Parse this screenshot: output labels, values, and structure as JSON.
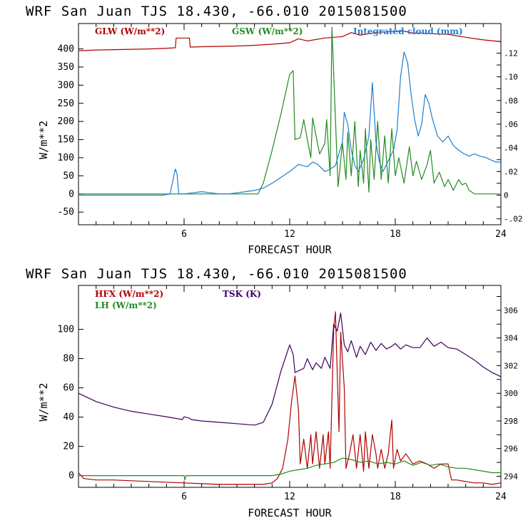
{
  "chart_data": [
    {
      "type": "line",
      "title": "WRF   San Juan TJS  18.430, -66.010  2015081500",
      "xlabel": "FORECAST HOUR",
      "ylabel": "W/m**2",
      "xlim": [
        0,
        24
      ],
      "ylim": [
        -85,
        470
      ],
      "y2lim": [
        -0.025,
        0.145
      ],
      "x_ticks": [
        6,
        12,
        18,
        24
      ],
      "y_ticks": [
        -50,
        0,
        50,
        100,
        150,
        200,
        250,
        300,
        350,
        400
      ],
      "y2_ticks": [
        -0.02,
        0,
        0.02,
        0.04,
        0.06,
        0.08,
        0.1,
        0.12
      ],
      "y2_tick_labels": [
        "-.02",
        "0",
        ".02",
        ".04",
        ".06",
        ".08",
        ".10",
        ".12"
      ],
      "series": [
        {
          "name": "GLW (W/m**2)",
          "color": "#b00000",
          "axis": "left",
          "x": [
            0,
            1,
            2,
            3,
            4,
            5,
            5.5,
            5.55,
            6.3,
            6.35,
            7,
            8,
            9,
            10,
            11,
            12,
            12.5,
            13,
            14,
            15,
            15.5,
            16,
            17,
            18,
            18.5,
            19,
            20,
            21,
            22,
            23,
            24
          ],
          "y": [
            395,
            397,
            398,
            399,
            400,
            402,
            403,
            430,
            430,
            405,
            406,
            407,
            408,
            410,
            413,
            417,
            428,
            422,
            430,
            434,
            445,
            438,
            446,
            448,
            449,
            444,
            442,
            440,
            432,
            425,
            420
          ]
        },
        {
          "name": "GSW (W/m**2)",
          "color": "#228b22",
          "axis": "left",
          "x": [
            0,
            10.2,
            10.5,
            11,
            11.5,
            12,
            12.2,
            12.3,
            12.6,
            12.8,
            13,
            13.2,
            13.3,
            13.7,
            14,
            14.1,
            14.3,
            14.4,
            14.7,
            14.75,
            15,
            15.2,
            15.3,
            15.5,
            15.7,
            15.9,
            16,
            16.2,
            16.3,
            16.5,
            16.6,
            16.8,
            17,
            17.2,
            17.4,
            17.6,
            17.8,
            18,
            18.2,
            18.5,
            18.8,
            19,
            19.2,
            19.5,
            19.8,
            20,
            20.2,
            20.5,
            20.8,
            21,
            21.3,
            21.6,
            21.8,
            22,
            22.2,
            22.5,
            24
          ],
          "y": [
            0,
            0,
            30,
            120,
            220,
            330,
            340,
            150,
            155,
            205,
            150,
            100,
            210,
            110,
            140,
            205,
            50,
            460,
            80,
            20,
            140,
            40,
            170,
            50,
            200,
            20,
            120,
            30,
            180,
            5,
            150,
            40,
            200,
            40,
            160,
            30,
            180,
            50,
            100,
            30,
            130,
            50,
            90,
            40,
            80,
            120,
            30,
            60,
            20,
            40,
            10,
            40,
            25,
            30,
            10,
            0,
            0
          ]
        },
        {
          "name": "Integrated cloud (mm)",
          "color": "#1f7fd0",
          "axis": "right",
          "x": [
            0,
            4.8,
            5.2,
            5.5,
            5.6,
            5.7,
            6,
            6.5,
            7,
            7.5,
            8,
            8.5,
            9,
            9.5,
            10,
            10.5,
            11,
            11.5,
            12,
            12.5,
            13,
            13.3,
            13.6,
            14,
            14.3,
            14.6,
            15,
            15.1,
            15.3,
            15.5,
            15.7,
            15.9,
            16.2,
            16.5,
            16.7,
            16.9,
            17.1,
            17.3,
            17.5,
            17.7,
            17.9,
            18.1,
            18.3,
            18.5,
            18.7,
            18.9,
            19.1,
            19.3,
            19.5,
            19.7,
            19.9,
            20.1,
            20.4,
            20.7,
            21,
            21.3,
            21.6,
            21.9,
            22.2,
            22.5,
            22.8,
            23.1,
            23.4,
            23.7,
            24
          ],
          "y": [
            0,
            0,
            0.001,
            0.022,
            0.018,
            0.001,
            0.001,
            0.002,
            0.003,
            0.002,
            0.001,
            0.001,
            0.002,
            0.003,
            0.004,
            0.006,
            0.01,
            0.015,
            0.02,
            0.026,
            0.024,
            0.028,
            0.026,
            0.02,
            0.022,
            0.025,
            0.045,
            0.07,
            0.06,
            0.038,
            0.025,
            0.02,
            0.03,
            0.05,
            0.095,
            0.045,
            0.028,
            0.02,
            0.026,
            0.032,
            0.038,
            0.055,
            0.1,
            0.121,
            0.112,
            0.085,
            0.064,
            0.05,
            0.06,
            0.085,
            0.078,
            0.065,
            0.05,
            0.045,
            0.05,
            0.042,
            0.038,
            0.035,
            0.033,
            0.035,
            0.033,
            0.032,
            0.03,
            0.028,
            0.028
          ]
        }
      ],
      "legend": [
        {
          "label": "GLW (W/m**2)",
          "color": "#b00000"
        },
        {
          "label": "GSW (W/m**2)",
          "color": "#228b22"
        },
        {
          "label": "Integrated cloud (mm)",
          "color": "#1f7fd0"
        }
      ]
    },
    {
      "type": "line",
      "title": "WRF   San Juan TJS  18.430, -66.010  2015081500",
      "xlabel": "FORECAST HOUR",
      "ylabel": "W/m**2",
      "xlim": [
        0,
        24
      ],
      "ylim": [
        -8,
        130
      ],
      "y2lim": [
        293.2,
        307.8
      ],
      "x_ticks": [
        6,
        12,
        18,
        24
      ],
      "y_ticks": [
        0,
        20,
        40,
        60,
        80,
        100
      ],
      "y2_ticks": [
        294,
        296,
        298,
        300,
        302,
        304,
        306
      ],
      "y2_tick_labels": [
        "294",
        "296",
        "298",
        "300",
        "302",
        "304",
        "306"
      ],
      "series": [
        {
          "name": "HFX (W/m**2)",
          "color": "#b00000",
          "axis": "left",
          "x": [
            0,
            0.3,
            1,
            2,
            3,
            4,
            5,
            6,
            7,
            8,
            9,
            10,
            10.5,
            11,
            11.3,
            11.6,
            11.9,
            12.1,
            12.3,
            12.5,
            12.6,
            12.8,
            13,
            13.2,
            13.3,
            13.5,
            13.7,
            13.9,
            14,
            14.2,
            14.3,
            14.5,
            14.6,
            14.8,
            14.9,
            15.1,
            15.2,
            15.4,
            15.6,
            15.8,
            16,
            16.2,
            16.3,
            16.5,
            16.7,
            16.9,
            17,
            17.2,
            17.4,
            17.6,
            17.8,
            17.9,
            18.1,
            18.3,
            18.6,
            19,
            19.4,
            19.8,
            20.2,
            20.6,
            21,
            21.2,
            21.5,
            22,
            22.5,
            23,
            23.5,
            24
          ],
          "y": [
            2,
            -2,
            -3,
            -3,
            -3.5,
            -4,
            -4.5,
            -5,
            -5.5,
            -6,
            -6,
            -6,
            -6,
            -5,
            -2,
            5,
            25,
            50,
            68,
            45,
            8,
            25,
            5,
            28,
            8,
            30,
            5,
            28,
            8,
            30,
            5,
            100,
            112,
            30,
            98,
            60,
            5,
            15,
            28,
            5,
            28,
            3,
            30,
            5,
            28,
            15,
            5,
            18,
            5,
            15,
            38,
            5,
            18,
            10,
            15,
            8,
            10,
            8,
            5,
            8,
            8,
            -3,
            -3,
            -4,
            -5,
            -5,
            -6,
            -5
          ]
        },
        {
          "name": "LH (W/m**2)",
          "color": "#228b22",
          "axis": "left",
          "x": [
            0,
            6,
            6.05,
            6.1,
            7,
            8,
            9,
            10,
            10.5,
            11,
            11.5,
            12,
            12.5,
            13,
            13.5,
            14,
            14.5,
            15,
            15.5,
            16,
            16.5,
            17,
            17.5,
            18,
            18.5,
            19,
            19.5,
            20,
            20.5,
            21,
            21.5,
            22,
            22.5,
            23,
            23.5,
            24
          ],
          "y": [
            0,
            0,
            -3,
            0,
            0,
            0,
            0,
            0,
            0,
            0,
            1,
            3,
            4,
            5,
            7,
            8,
            9,
            12,
            11,
            9,
            10,
            8,
            9,
            8,
            10,
            7,
            9,
            7,
            8,
            6,
            5,
            5,
            4,
            3,
            2,
            2
          ]
        },
        {
          "name": "TSK (K)",
          "color": "#3a0060",
          "axis": "right",
          "x": [
            0,
            1,
            2,
            3,
            4,
            5,
            5.9,
            6,
            6.3,
            6.4,
            7,
            8,
            9,
            10,
            10.5,
            11,
            11.5,
            12,
            12.2,
            12.3,
            12.8,
            13,
            13.3,
            13.5,
            13.8,
            14,
            14.3,
            14.5,
            14.7,
            14.9,
            15.1,
            15.3,
            15.5,
            15.8,
            16,
            16.3,
            16.6,
            16.9,
            17.2,
            17.5,
            17.8,
            18,
            18.3,
            18.6,
            19,
            19.4,
            19.8,
            20.2,
            20.6,
            21,
            21.5,
            22,
            22.5,
            23,
            23.5,
            24
          ],
          "y": [
            300,
            299.4,
            299,
            298.7,
            298.5,
            298.3,
            298.1,
            298.3,
            298.2,
            298.1,
            298.0,
            297.9,
            297.8,
            297.7,
            297.9,
            299.2,
            301.6,
            303.5,
            302.8,
            301.5,
            301.8,
            302.5,
            301.7,
            302.2,
            301.8,
            302.6,
            301.8,
            305.0,
            304.5,
            305.8,
            303.5,
            303.0,
            303.8,
            302.6,
            303.4,
            302.8,
            303.7,
            303.1,
            303.6,
            303.2,
            303.4,
            303.6,
            303.2,
            303.5,
            303.3,
            303.3,
            304.0,
            303.4,
            303.7,
            303.3,
            303.2,
            302.8,
            302.4,
            301.9,
            301.5,
            301.2
          ]
        }
      ],
      "legend": [
        {
          "label": "HFX (W/m**2)",
          "color": "#b00000"
        },
        {
          "label": "LH  (W/m**2)",
          "color": "#228b22"
        },
        {
          "label": "TSK (K)",
          "color": "#3a0060"
        }
      ]
    }
  ]
}
